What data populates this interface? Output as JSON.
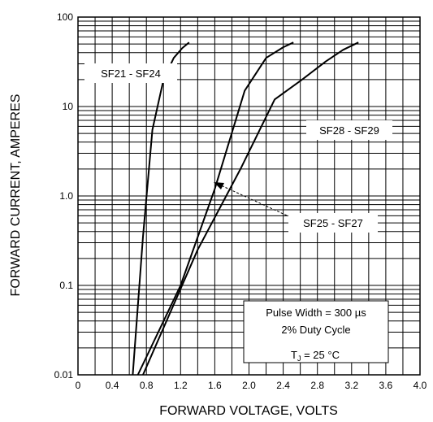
{
  "chart_data": {
    "type": "line",
    "xlabel": "FORWARD VOLTAGE, VOLTS",
    "ylabel": "FORWARD CURRENT, AMPERES",
    "x_scale": "linear",
    "y_scale": "log",
    "xlim": [
      0,
      4.0
    ],
    "ylim": [
      0.01,
      100
    ],
    "x_ticks": [
      "0",
      "0.4",
      "0.8",
      "1.2",
      "1.6",
      "2.0",
      "2.4",
      "2.8",
      "3.2",
      "3.6",
      "4.0"
    ],
    "y_ticks": [
      "0.01",
      "0.1",
      "1.0",
      "10",
      "100"
    ],
    "grid": true,
    "series": [
      {
        "name": "SF21 - SF24",
        "x": [
          0.64,
          0.76,
          0.87,
          1.0,
          1.12,
          1.22,
          1.3
        ],
        "y": [
          0.01,
          0.35,
          5.5,
          20,
          35,
          45,
          52
        ]
      },
      {
        "name": "SF28 - SF29",
        "x": [
          0.7,
          1.2,
          1.6,
          1.95,
          2.2,
          2.4,
          2.52
        ],
        "y": [
          0.01,
          0.1,
          1.2,
          15,
          35,
          46,
          52
        ]
      },
      {
        "name": "SF25 - SF27",
        "x": [
          0.76,
          1.4,
          1.9,
          2.3,
          2.62,
          2.9,
          3.1,
          3.28
        ],
        "y": [
          0.01,
          0.25,
          2.0,
          12,
          20,
          32,
          43,
          52
        ]
      }
    ],
    "annotations": {
      "pulse_width": "Pulse Width = 300 µs",
      "duty_cycle": "2% Duty Cycle",
      "temp_prefix": "T",
      "temp_sub": "J",
      "temp_value": " = 25 °C"
    }
  }
}
